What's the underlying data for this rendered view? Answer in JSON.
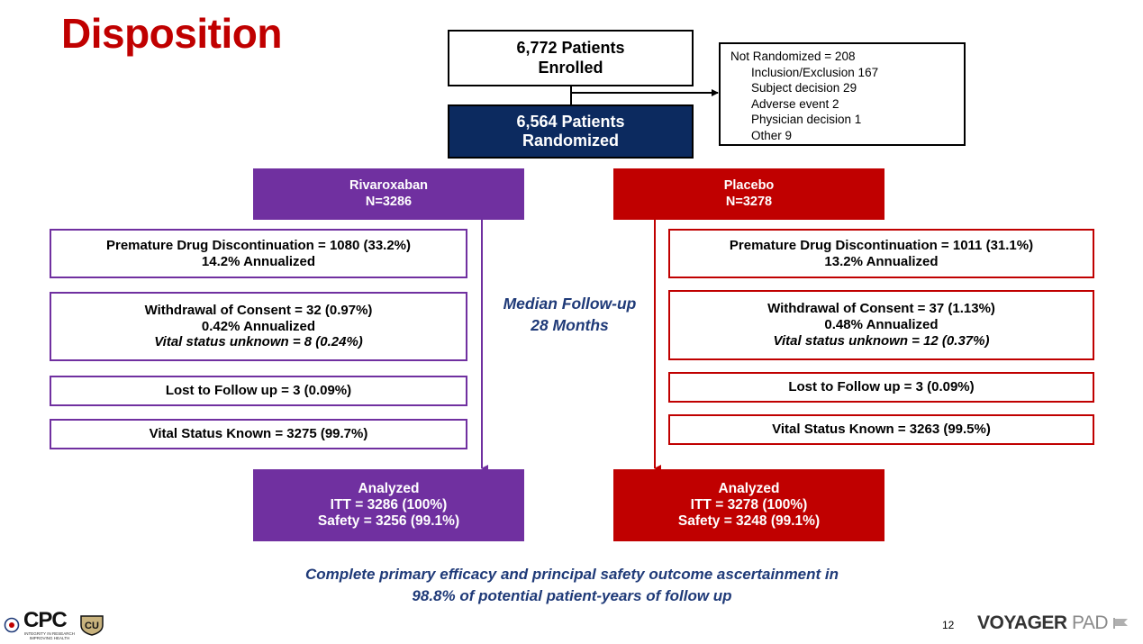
{
  "title": "Disposition",
  "enrolled": {
    "line1": "6,772 Patients",
    "line2": "Enrolled"
  },
  "randomized": {
    "line1": "6,564 Patients",
    "line2": "Randomized"
  },
  "not_randomized": {
    "header": "Not Randomized = 208",
    "items": [
      "Inclusion/Exclusion  167",
      "Subject decision 29",
      "Adverse event 2",
      "Physician decision 1",
      "Other 9"
    ]
  },
  "rivaroxaban": {
    "name": "Rivaroxaban",
    "n": "N=3286",
    "discontinuation": {
      "line1": "Premature Drug Discontinuation = 1080 (33.2%)",
      "line2": "14.2% Annualized"
    },
    "withdrawal": {
      "line1": "Withdrawal of Consent = 32 (0.97%)",
      "line2": "0.42% Annualized",
      "line3": "Vital status unknown = 8 (0.24%)"
    },
    "lost": "Lost to Follow up = 3 (0.09%)",
    "vital": "Vital Status Known = 3275 (99.7%)",
    "analyzed": {
      "label": "Analyzed",
      "itt": "ITT = 3286 (100%)",
      "safety": "Safety = 3256 (99.1%)"
    }
  },
  "placebo": {
    "name": "Placebo",
    "n": "N=3278",
    "discontinuation": {
      "line1": "Premature Drug Discontinuation = 1011 (31.1%)",
      "line2": "13.2% Annualized"
    },
    "withdrawal": {
      "line1": "Withdrawal of Consent = 37 (1.13%)",
      "line2": "0.48% Annualized",
      "line3": "Vital status unknown = 12 (0.37%)"
    },
    "lost": "Lost to Follow up = 3 (0.09%)",
    "vital": "Vital Status Known = 3263 (99.5%)",
    "analyzed": {
      "label": "Analyzed",
      "itt": "ITT = 3278 (100%)",
      "safety": "Safety = 3248 (99.1%)"
    }
  },
  "median_followup": {
    "line1": "Median Follow-up",
    "line2": "28 Months"
  },
  "footer": {
    "line1": "Complete primary efficacy and principal safety outcome ascertainment in",
    "line2": "98.8% of potential patient-years of follow up"
  },
  "page_number": "12",
  "brand": {
    "main": "VOYAGER",
    "suffix": "PAD"
  },
  "logo": {
    "text": "CPC",
    "tagline": "INTEGRITY IN RESEARCH IMPROVING HEALTH"
  },
  "colors": {
    "title": "#c00000",
    "rivaroxaban": "#7030a0",
    "placebo": "#c00000",
    "randomized": "#0c2a5f",
    "accent_text": "#1f3a78"
  }
}
